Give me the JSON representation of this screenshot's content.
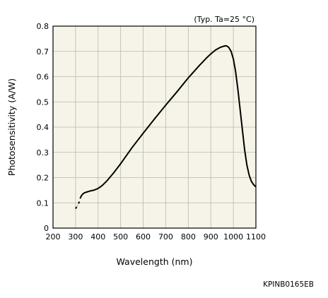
{
  "chart_data": {
    "type": "line",
    "xlabel": "Wavelength (nm)",
    "ylabel": "Photosensitivity (A/W)",
    "annotation": "(Typ. Ta=25 °C)",
    "code": "KPINB0165EB",
    "xlim": [
      200,
      1100
    ],
    "ylim": [
      0,
      0.8
    ],
    "x_ticks": [
      200,
      300,
      400,
      500,
      600,
      700,
      800,
      900,
      1000,
      1100
    ],
    "y_ticks": [
      0,
      0.1,
      0.2,
      0.3,
      0.4,
      0.5,
      0.6,
      0.7,
      0.8
    ],
    "x_tick_labels": [
      "200",
      "300",
      "400",
      "500",
      "600",
      "700",
      "800",
      "900",
      "1000",
      "1100"
    ],
    "y_tick_labels": [
      "0",
      "0.1",
      "0.2",
      "0.3",
      "0.4",
      "0.5",
      "0.6",
      "0.7",
      "0.8"
    ],
    "grid": true,
    "background": "#f6f4e8",
    "grid_color": "#b8b8b0",
    "line_color": "#000000",
    "series": [
      {
        "segments": [
          {
            "style": "dashed",
            "x": [
              300,
              304,
              309
            ],
            "y": [
              0.077,
              0.083,
              0.09
            ]
          },
          {
            "style": "dashed",
            "x": [
              313,
              316,
              319
            ],
            "y": [
              0.097,
              0.103,
              0.11
            ]
          },
          {
            "style": "solid",
            "x": [
              320,
              325,
              332,
              340,
              350,
              365,
              380,
              395,
              405,
              420,
              440,
              470,
              500,
              550,
              600,
              650,
              700,
              750,
              800,
              850,
              880,
              900,
              920,
              940,
              955,
              965,
              972,
              980,
              990,
              1000,
              1010,
              1020,
              1030,
              1040,
              1050,
              1060,
              1070,
              1080,
              1090,
              1100
            ],
            "y": [
              0.117,
              0.127,
              0.135,
              0.14,
              0.143,
              0.147,
              0.15,
              0.155,
              0.16,
              0.17,
              0.188,
              0.22,
              0.255,
              0.318,
              0.376,
              0.432,
              0.487,
              0.54,
              0.595,
              0.645,
              0.673,
              0.69,
              0.705,
              0.715,
              0.72,
              0.722,
              0.721,
              0.715,
              0.7,
              0.67,
              0.62,
              0.55,
              0.47,
              0.39,
              0.31,
              0.25,
              0.21,
              0.185,
              0.172,
              0.163
            ]
          }
        ]
      }
    ]
  }
}
